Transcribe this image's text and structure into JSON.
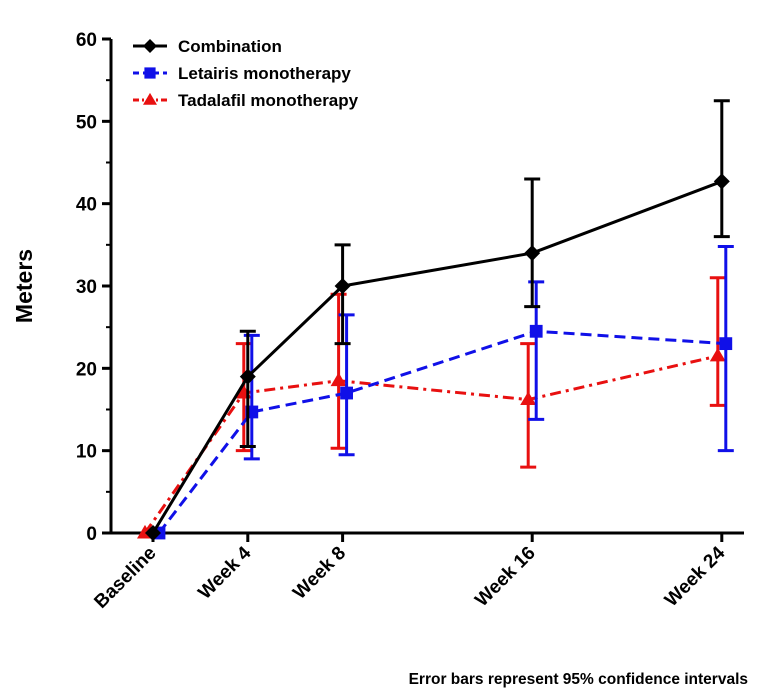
{
  "chart_data": {
    "type": "line",
    "title": "",
    "xlabel": "",
    "ylabel": "Meters",
    "ylim": [
      0,
      60
    ],
    "yticks": [
      0,
      10,
      20,
      30,
      40,
      50,
      60
    ],
    "xlim": [
      0,
      24
    ],
    "categories": [
      "Baseline",
      "Week 4",
      "Week 8",
      "Week 16",
      "Week 24"
    ],
    "x": [
      0,
      4,
      8,
      16,
      24
    ],
    "grid": false,
    "legend_position": "top-left",
    "footnote": "Error bars represent 95% confidence intervals",
    "series": [
      {
        "name": "Combination",
        "color": "#000000",
        "marker": "diamond",
        "line_style": "solid",
        "values": [
          0,
          19,
          30,
          34,
          42.7
        ],
        "ci_low": [
          0,
          10.5,
          23,
          27.5,
          36
        ],
        "ci_high": [
          0,
          24.5,
          35,
          43,
          52.5
        ]
      },
      {
        "name": "Letairis monotherapy",
        "color": "#1010e8",
        "marker": "square",
        "line_style": "dashed",
        "values": [
          0,
          14.7,
          17,
          24.5,
          23
        ],
        "ci_low": [
          0,
          9,
          9.5,
          13.8,
          10
        ],
        "ci_high": [
          0,
          24,
          26.5,
          30.5,
          34.8
        ]
      },
      {
        "name": "Tadalafil monotherapy",
        "color": "#e81010",
        "marker": "triangle",
        "line_style": "dash-dot",
        "values": [
          0,
          17,
          18.5,
          16.2,
          21.5
        ],
        "ci_low": [
          0,
          10,
          10.3,
          8,
          15.5
        ],
        "ci_high": [
          0,
          23,
          29,
          23,
          31
        ]
      }
    ]
  }
}
